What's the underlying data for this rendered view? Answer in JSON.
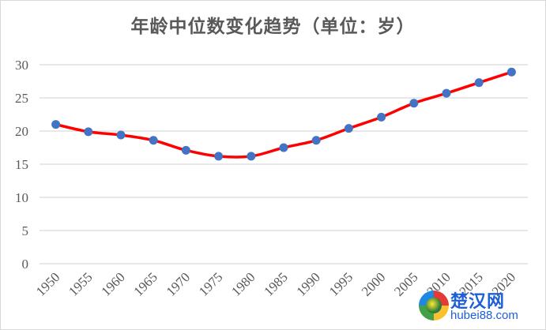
{
  "chart_data": {
    "type": "line",
    "title": "年龄中位数变化趋势（单位：岁）",
    "xlabel": "",
    "ylabel": "",
    "categories": [
      "1950",
      "1955",
      "1960",
      "1965",
      "1970",
      "1975",
      "1980",
      "1985",
      "1990",
      "1995",
      "2000",
      "2005",
      "2010",
      "2015",
      "2020"
    ],
    "series": [
      {
        "name": "年龄中位数",
        "values": [
          21.0,
          19.9,
          19.4,
          18.6,
          17.1,
          16.2,
          16.2,
          17.5,
          18.6,
          20.4,
          22.1,
          24.2,
          25.7,
          27.3,
          28.9
        ],
        "line_color": "#ff0000",
        "marker_color": "#4472c4",
        "smooth": true
      }
    ],
    "ylim": [
      0,
      30
    ],
    "yticks": [
      "0",
      "5",
      "10",
      "15",
      "20",
      "25",
      "30"
    ],
    "grid": true,
    "legend": "none"
  },
  "colors": {
    "line": "#ff0000",
    "marker": "#4472c4",
    "grid": "#d9d9d9",
    "text": "#595959",
    "border": "#d9d9d9"
  },
  "watermark": {
    "name": "楚汉网",
    "url": "hubei88.com"
  }
}
